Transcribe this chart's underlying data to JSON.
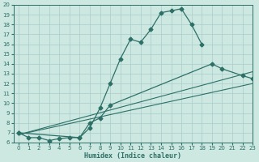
{
  "xlabel": "Humidex (Indice chaleur)",
  "bg_color": "#cce8e0",
  "grid_color": "#aacccc",
  "line_color": "#2d7068",
  "xlim": [
    -0.5,
    23
  ],
  "ylim": [
    6,
    20
  ],
  "xticks": [
    0,
    1,
    2,
    3,
    4,
    5,
    6,
    7,
    8,
    9,
    10,
    11,
    12,
    13,
    14,
    15,
    16,
    17,
    18,
    19,
    20,
    21,
    22,
    23
  ],
  "yticks": [
    6,
    7,
    8,
    9,
    10,
    11,
    12,
    13,
    14,
    15,
    16,
    17,
    18,
    19,
    20
  ],
  "curve1_x": [
    0,
    1,
    2,
    3,
    4,
    5,
    6,
    7,
    8,
    9,
    10,
    11,
    12,
    13,
    14,
    15,
    16,
    17,
    18
  ],
  "curve1_y": [
    7.0,
    6.5,
    6.5,
    6.2,
    6.4,
    6.5,
    6.5,
    7.5,
    9.5,
    12.0,
    14.5,
    16.5,
    16.2,
    17.5,
    19.2,
    19.4,
    19.6,
    18.0,
    16.0
  ],
  "curve2_x": [
    0,
    6,
    7,
    8,
    9,
    19,
    20,
    22,
    23
  ],
  "curve2_y": [
    7.0,
    6.5,
    8.0,
    8.5,
    9.8,
    14.0,
    13.5,
    12.8,
    12.5
  ],
  "line1_x": [
    0,
    23
  ],
  "line1_y": [
    6.8,
    13.2
  ],
  "line2_x": [
    0,
    23
  ],
  "line2_y": [
    6.8,
    12.0
  ]
}
